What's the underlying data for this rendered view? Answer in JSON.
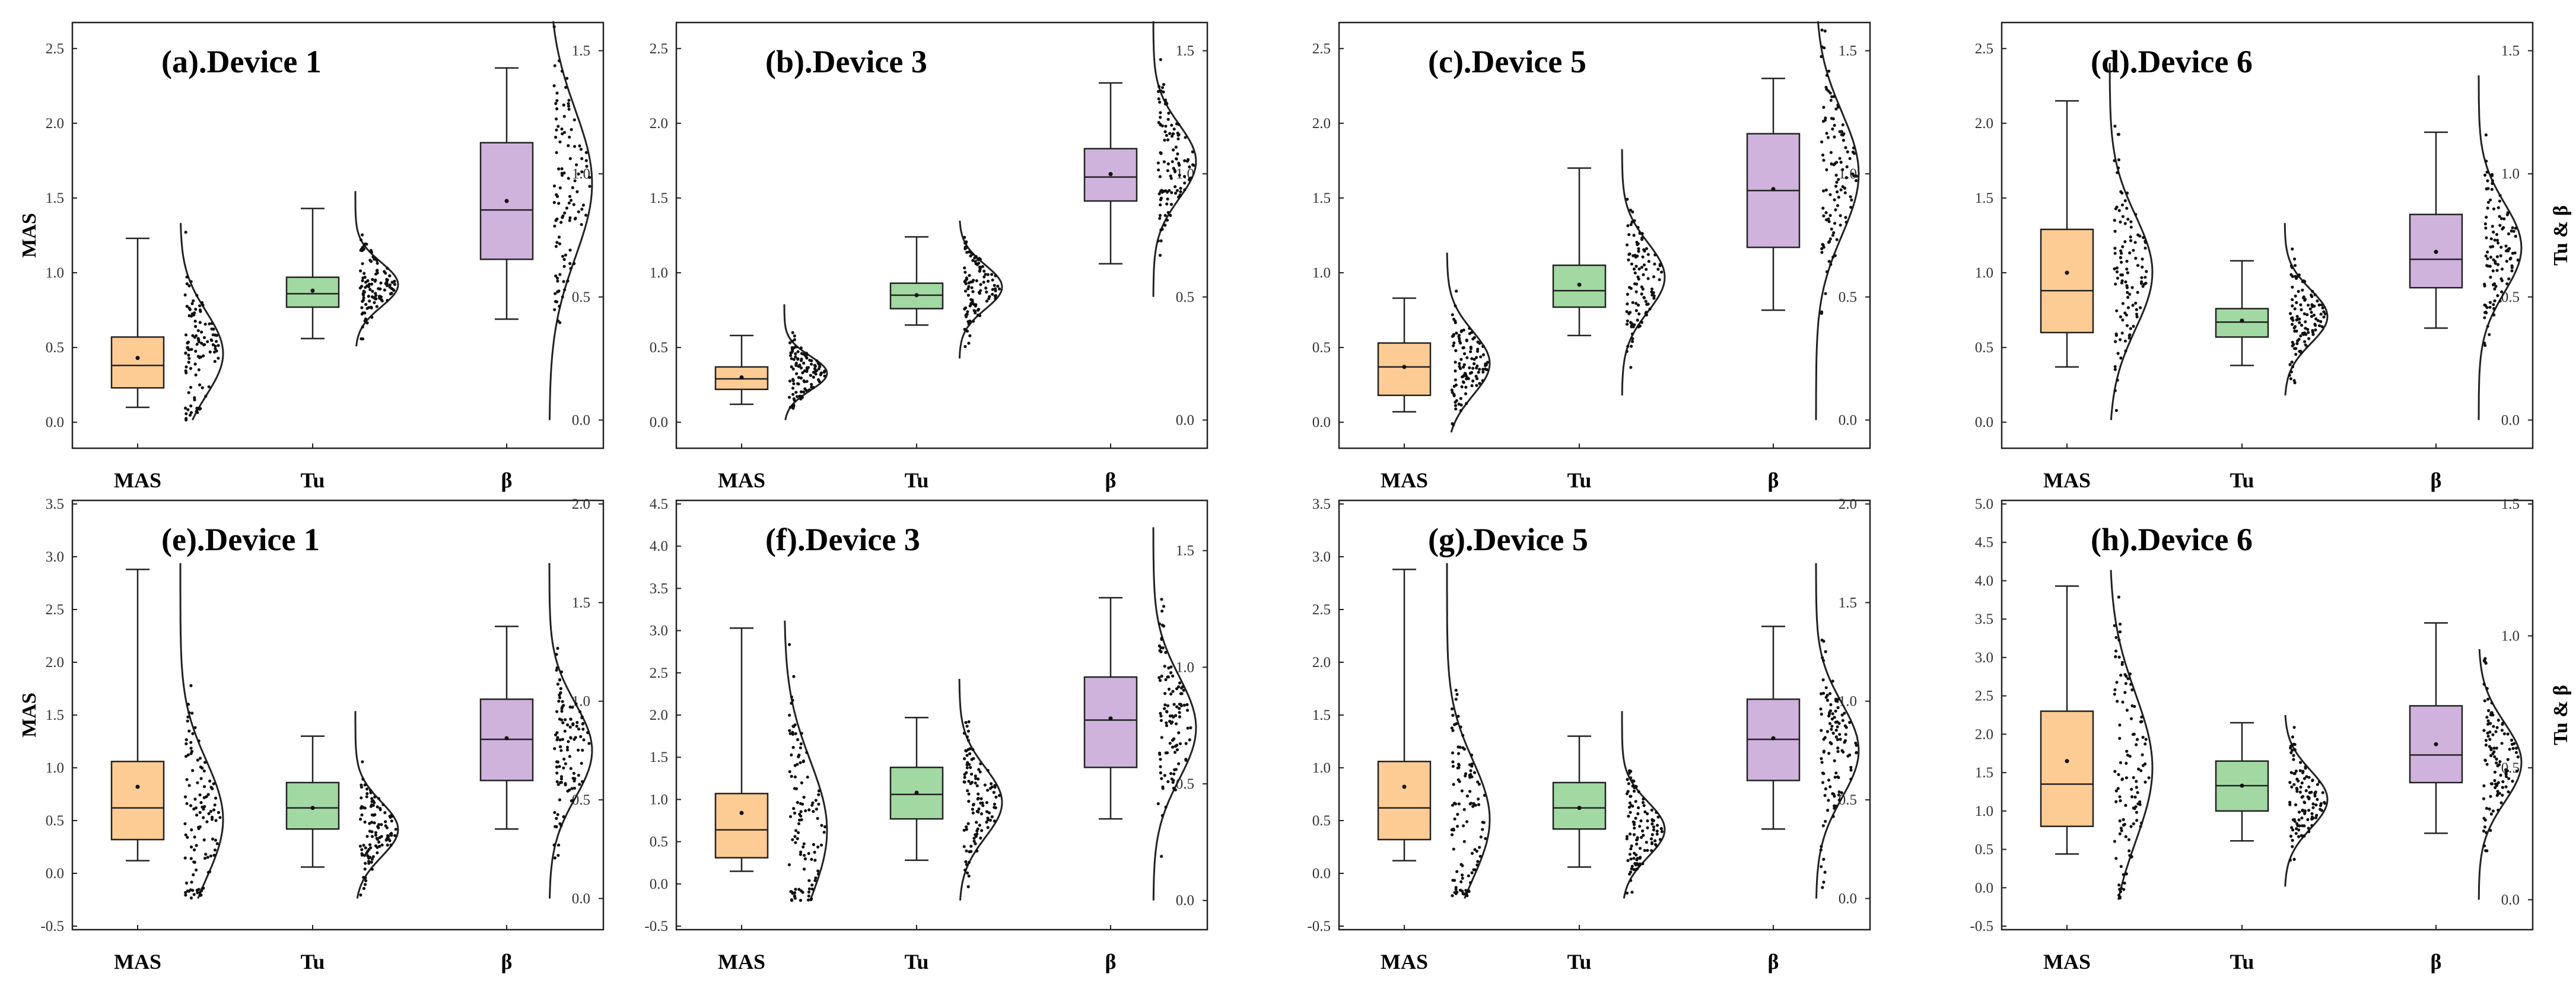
{
  "figure": {
    "colors": {
      "MAS": "#fdcc95",
      "Tu": "#a2d9a2",
      "beta": "#cfb3dc",
      "stroke": "#222222"
    },
    "categories": [
      "MAS",
      "Tu",
      "β"
    ]
  },
  "chart_data": [
    {
      "type": "raincloud-boxplot",
      "title": "(a).Device 1",
      "ylabel": "MAS",
      "y2label": "",
      "ylim": [
        -0.15,
        2.65
      ],
      "yticks": [
        "0.0",
        "0.5",
        "1.0",
        "1.5",
        "2.0",
        "2.5"
      ],
      "y2lim": [
        -0.1,
        1.6
      ],
      "y2ticks": [
        "0.0",
        "0.5",
        "1.0",
        "1.5"
      ],
      "categories": [
        "MAS",
        "Tu",
        "β"
      ],
      "boxes": [
        {
          "category": "MAS",
          "min": 0.1,
          "q1": 0.23,
          "median": 0.38,
          "q3": 0.57,
          "max": 1.23,
          "mean": 0.43,
          "axis": "left"
        },
        {
          "category": "Tu",
          "min": 0.56,
          "q1": 0.77,
          "median": 0.86,
          "q3": 0.97,
          "max": 1.43,
          "mean": 0.88,
          "axis": "left"
        },
        {
          "category": "β",
          "min": 0.69,
          "q1": 1.09,
          "median": 1.42,
          "q3": 1.87,
          "max": 2.37,
          "mean": 1.48,
          "axis": "left"
        }
      ],
      "distributions": [
        {
          "category": "MAS",
          "mean": 0.27,
          "sd": 0.17,
          "lo": 0.0,
          "hi": 0.8,
          "axis": "right"
        },
        {
          "category": "Tu",
          "mean": 0.55,
          "sd": 0.09,
          "lo": 0.3,
          "hi": 0.93,
          "axis": "right"
        },
        {
          "category": "β",
          "mean": 0.96,
          "sd": 0.3,
          "lo": 0.0,
          "hi": 1.62,
          "axis": "right"
        }
      ]
    },
    {
      "type": "raincloud-boxplot",
      "title": "(b).Device 3",
      "ylabel": "",
      "y2label": "",
      "ylim": [
        -0.15,
        2.65
      ],
      "yticks": [
        "0.0",
        "0.5",
        "1.0",
        "1.5",
        "2.0",
        "2.5"
      ],
      "y2lim": [
        -0.1,
        1.6
      ],
      "y2ticks": [
        "0.0",
        "0.5",
        "1.0",
        "1.5"
      ],
      "categories": [
        "MAS",
        "Tu",
        "β"
      ],
      "boxes": [
        {
          "category": "MAS",
          "min": 0.12,
          "q1": 0.22,
          "median": 0.29,
          "q3": 0.37,
          "max": 0.58,
          "mean": 0.3,
          "axis": "left"
        },
        {
          "category": "Tu",
          "min": 0.65,
          "q1": 0.76,
          "median": 0.85,
          "q3": 0.93,
          "max": 1.24,
          "mean": 0.85,
          "axis": "left"
        },
        {
          "category": "β",
          "min": 1.06,
          "q1": 1.48,
          "median": 1.64,
          "q3": 1.83,
          "max": 2.27,
          "mean": 1.66,
          "axis": "left"
        }
      ],
      "distributions": [
        {
          "category": "MAS",
          "mean": 0.19,
          "sd": 0.07,
          "lo": 0.0,
          "hi": 0.47,
          "axis": "right"
        },
        {
          "category": "Tu",
          "mean": 0.54,
          "sd": 0.09,
          "lo": 0.25,
          "hi": 0.81,
          "axis": "right"
        },
        {
          "category": "β",
          "mean": 1.05,
          "sd": 0.15,
          "lo": 0.5,
          "hi": 1.62,
          "axis": "right"
        }
      ]
    },
    {
      "type": "raincloud-boxplot",
      "title": "(c).Device 5",
      "ylabel": "",
      "y2label": "",
      "ylim": [
        -0.15,
        2.65
      ],
      "yticks": [
        "0.0",
        "0.5",
        "1.0",
        "1.5",
        "2.0",
        "2.5"
      ],
      "y2lim": [
        -0.1,
        1.6
      ],
      "y2ticks": [
        "0.0",
        "0.5",
        "1.0",
        "1.5"
      ],
      "categories": [
        "MAS",
        "Tu",
        "β"
      ],
      "boxes": [
        {
          "category": "MAS",
          "min": 0.07,
          "q1": 0.18,
          "median": 0.37,
          "q3": 0.53,
          "max": 0.83,
          "mean": 0.37,
          "axis": "left"
        },
        {
          "category": "Tu",
          "min": 0.58,
          "q1": 0.77,
          "median": 0.88,
          "q3": 1.05,
          "max": 1.7,
          "mean": 0.92,
          "axis": "left"
        },
        {
          "category": "β",
          "min": 0.75,
          "q1": 1.17,
          "median": 1.55,
          "q3": 1.93,
          "max": 2.3,
          "mean": 1.56,
          "axis": "left"
        }
      ],
      "distributions": [
        {
          "category": "MAS",
          "mean": 0.23,
          "sd": 0.13,
          "lo": -0.05,
          "hi": 0.68,
          "axis": "right"
        },
        {
          "category": "Tu",
          "mean": 0.58,
          "sd": 0.14,
          "lo": 0.1,
          "hi": 1.1,
          "axis": "right"
        },
        {
          "category": "β",
          "mean": 1.0,
          "sd": 0.25,
          "lo": 0.0,
          "hi": 1.62,
          "axis": "right"
        }
      ]
    },
    {
      "type": "raincloud-boxplot",
      "title": "(d).Device 6",
      "ylabel": "",
      "y2label": "Tu & β",
      "ylim": [
        -0.15,
        2.65
      ],
      "yticks": [
        "0.0",
        "0.5",
        "1.0",
        "1.5",
        "2.0",
        "2.5"
      ],
      "y2lim": [
        -0.1,
        1.6
      ],
      "y2ticks": [
        "0.0",
        "0.5",
        "1.0",
        "1.5"
      ],
      "categories": [
        "MAS",
        "Tu",
        "β"
      ],
      "boxes": [
        {
          "category": "MAS",
          "min": 0.37,
          "q1": 0.6,
          "median": 0.88,
          "q3": 1.29,
          "max": 2.15,
          "mean": 1.0,
          "axis": "left"
        },
        {
          "category": "Tu",
          "min": 0.38,
          "q1": 0.57,
          "median": 0.67,
          "q3": 0.76,
          "max": 1.08,
          "mean": 0.68,
          "axis": "left"
        },
        {
          "category": "β",
          "min": 0.63,
          "q1": 0.9,
          "median": 1.09,
          "q3": 1.39,
          "max": 1.94,
          "mean": 1.14,
          "axis": "left"
        }
      ],
      "distributions": [
        {
          "category": "MAS",
          "mean": 0.6,
          "sd": 0.23,
          "lo": 0.0,
          "hi": 1.45,
          "axis": "right"
        },
        {
          "category": "Tu",
          "mean": 0.42,
          "sd": 0.11,
          "lo": 0.1,
          "hi": 0.8,
          "axis": "right"
        },
        {
          "category": "β",
          "mean": 0.7,
          "sd": 0.18,
          "lo": 0.0,
          "hi": 1.4,
          "axis": "right"
        }
      ]
    },
    {
      "type": "raincloud-boxplot",
      "title": "(e).Device 1",
      "ylabel": "MAS",
      "y2label": "",
      "ylim": [
        -0.5,
        3.5
      ],
      "yticks": [
        "-0.5",
        "0.0",
        "0.5",
        "1.0",
        "1.5",
        "2.0",
        "2.5",
        "3.0",
        "3.5"
      ],
      "y2lim": [
        -0.14,
        2.0
      ],
      "y2ticks": [
        "0.0",
        "0.5",
        "1.0",
        "1.5",
        "2.0"
      ],
      "categories": [
        "MAS",
        "Tu",
        "β"
      ],
      "boxes": [
        {
          "category": "MAS",
          "min": 0.12,
          "q1": 0.32,
          "median": 0.62,
          "q3": 1.06,
          "max": 2.88,
          "mean": 0.82,
          "axis": "left"
        },
        {
          "category": "Tu",
          "min": 0.06,
          "q1": 0.42,
          "median": 0.62,
          "q3": 0.86,
          "max": 1.3,
          "mean": 0.62,
          "axis": "left"
        },
        {
          "category": "β",
          "min": 0.42,
          "q1": 0.88,
          "median": 1.27,
          "q3": 1.65,
          "max": 2.34,
          "mean": 1.28,
          "axis": "left"
        }
      ],
      "distributions": [
        {
          "category": "MAS",
          "mean": 0.4,
          "sd": 0.3,
          "lo": 0.0,
          "hi": 1.7,
          "axis": "right"
        },
        {
          "category": "Tu",
          "mean": 0.35,
          "sd": 0.14,
          "lo": 0.0,
          "hi": 0.95,
          "axis": "right"
        },
        {
          "category": "β",
          "mean": 0.75,
          "sd": 0.24,
          "lo": 0.0,
          "hi": 1.7,
          "axis": "right"
        }
      ]
    },
    {
      "type": "raincloud-boxplot",
      "title": "(f).Device 3",
      "ylabel": "",
      "y2label": "",
      "ylim": [
        -0.5,
        4.5
      ],
      "yticks": [
        "-0.5",
        "0.0",
        "0.5",
        "1.0",
        "1.5",
        "2.0",
        "2.5",
        "3.0",
        "3.5",
        "4.0",
        "4.5"
      ],
      "y2lim": [
        -0.11,
        1.7
      ],
      "y2ticks": [
        "0.0",
        "0.5",
        "1.0",
        "1.5"
      ],
      "categories": [
        "MAS",
        "Tu",
        "β"
      ],
      "boxes": [
        {
          "category": "MAS",
          "min": 0.15,
          "q1": 0.31,
          "median": 0.64,
          "q3": 1.07,
          "max": 3.03,
          "mean": 0.84,
          "axis": "left"
        },
        {
          "category": "Tu",
          "min": 0.28,
          "q1": 0.77,
          "median": 1.06,
          "q3": 1.38,
          "max": 1.97,
          "mean": 1.08,
          "axis": "left"
        },
        {
          "category": "β",
          "min": 0.77,
          "q1": 1.38,
          "median": 1.94,
          "q3": 2.45,
          "max": 3.39,
          "mean": 1.96,
          "axis": "left"
        }
      ],
      "distributions": [
        {
          "category": "MAS",
          "mean": 0.3,
          "sd": 0.3,
          "lo": 0.0,
          "hi": 1.2,
          "axis": "right"
        },
        {
          "category": "Tu",
          "mean": 0.42,
          "sd": 0.15,
          "lo": 0.0,
          "hi": 0.95,
          "axis": "right"
        },
        {
          "category": "β",
          "mean": 0.74,
          "sd": 0.22,
          "lo": 0.0,
          "hi": 1.6,
          "axis": "right"
        }
      ]
    },
    {
      "type": "raincloud-boxplot",
      "title": "(g).Device 5",
      "ylabel": "",
      "y2label": "",
      "ylim": [
        -0.5,
        3.5
      ],
      "yticks": [
        "-0.5",
        "0.0",
        "0.5",
        "1.0",
        "1.5",
        "2.0",
        "2.5",
        "3.0",
        "3.5"
      ],
      "y2lim": [
        -0.14,
        2.0
      ],
      "y2ticks": [
        "0.0",
        "0.5",
        "1.0",
        "1.5",
        "2.0"
      ],
      "categories": [
        "MAS",
        "Tu",
        "β"
      ],
      "boxes": [
        {
          "category": "MAS",
          "min": 0.12,
          "q1": 0.32,
          "median": 0.62,
          "q3": 1.06,
          "max": 2.88,
          "mean": 0.82,
          "axis": "left"
        },
        {
          "category": "Tu",
          "min": 0.06,
          "q1": 0.42,
          "median": 0.62,
          "q3": 0.86,
          "max": 1.3,
          "mean": 0.62,
          "axis": "left"
        },
        {
          "category": "β",
          "min": 0.42,
          "q1": 0.88,
          "median": 1.27,
          "q3": 1.65,
          "max": 2.34,
          "mean": 1.28,
          "axis": "left"
        }
      ],
      "distributions": [
        {
          "category": "MAS",
          "mean": 0.4,
          "sd": 0.3,
          "lo": 0.0,
          "hi": 1.7,
          "axis": "right"
        },
        {
          "category": "Tu",
          "mean": 0.35,
          "sd": 0.14,
          "lo": 0.0,
          "hi": 0.95,
          "axis": "right"
        },
        {
          "category": "β",
          "mean": 0.75,
          "sd": 0.24,
          "lo": 0.0,
          "hi": 1.7,
          "axis": "right"
        }
      ]
    },
    {
      "type": "raincloud-boxplot",
      "title": "(h).Device 6",
      "ylabel": "",
      "y2label": "Tu & β",
      "ylim": [
        -0.5,
        5.0
      ],
      "yticks": [
        "-0.5",
        "0.0",
        "0.5",
        "1.0",
        "1.5",
        "2.0",
        "2.5",
        "3.0",
        "3.5",
        "4.0",
        "4.5",
        "5.0"
      ],
      "y2lim": [
        -0.1,
        1.5
      ],
      "y2ticks": [
        "0.0",
        "0.5",
        "1.0",
        "1.5"
      ],
      "categories": [
        "MAS",
        "Tu",
        "β"
      ],
      "boxes": [
        {
          "category": "MAS",
          "min": 0.44,
          "q1": 0.8,
          "median": 1.35,
          "q3": 2.3,
          "max": 3.93,
          "mean": 1.65,
          "axis": "left"
        },
        {
          "category": "Tu",
          "min": 0.61,
          "q1": 1.0,
          "median": 1.33,
          "q3": 1.65,
          "max": 2.15,
          "mean": 1.33,
          "axis": "left"
        },
        {
          "category": "β",
          "min": 0.71,
          "q1": 1.37,
          "median": 1.73,
          "q3": 2.37,
          "max": 3.45,
          "mean": 1.87,
          "axis": "left"
        }
      ],
      "distributions": [
        {
          "category": "MAS",
          "mean": 0.5,
          "sd": 0.28,
          "lo": 0.0,
          "hi": 1.25,
          "axis": "right"
        },
        {
          "category": "Tu",
          "mean": 0.38,
          "sd": 0.11,
          "lo": 0.05,
          "hi": 0.7,
          "axis": "right"
        },
        {
          "category": "β",
          "mean": 0.52,
          "sd": 0.15,
          "lo": 0.0,
          "hi": 0.95,
          "axis": "right"
        }
      ]
    }
  ]
}
